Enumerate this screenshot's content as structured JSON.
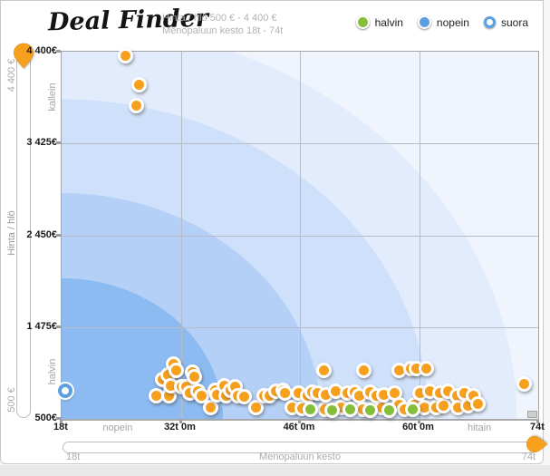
{
  "header": {
    "logo": "Deal Finder",
    "summary_line1": "Hinta / hlö 500 € - 4 400 €",
    "summary_line2": "Menopaluun kesto 18t - 74t",
    "legend": [
      {
        "label": "halvin",
        "color": "#85bf3a"
      },
      {
        "label": "nopein",
        "color": "#5b9fe0"
      },
      {
        "label": "suora",
        "color": "#5b9fe0"
      }
    ]
  },
  "price_slider": {
    "max_label": "4 400 €",
    "axis_label": "Hinta / hlö",
    "min_label": "500 €"
  },
  "duration_slider": {
    "min_label": "18t",
    "axis_label": "Menopaluun kesto",
    "max_label": "74t"
  },
  "chart_data": {
    "type": "scatter",
    "xlabel": "Menopaluun kesto",
    "ylabel": "Hinta / hlö",
    "xlim": [
      18,
      74
    ],
    "ylim": [
      500,
      4400
    ],
    "grid": true,
    "x_ticks": [
      {
        "label": "18t",
        "h": 18
      },
      {
        "label": "32t 0m",
        "h": 32
      },
      {
        "label": "46t 0m",
        "h": 46
      },
      {
        "label": "60t 0m",
        "h": 60
      },
      {
        "label": "74t",
        "h": 74
      }
    ],
    "x_side_labels": [
      {
        "label": "nopein",
        "h": 24.7
      },
      {
        "label": "hitain",
        "h": 67.2
      }
    ],
    "y_ticks": [
      {
        "label": "4 400€",
        "eur": 4400
      },
      {
        "label": "3 425€",
        "eur": 3425
      },
      {
        "label": "2 450€",
        "eur": 2450
      },
      {
        "label": "1 475€",
        "eur": 1475
      },
      {
        "label": "500€",
        "eur": 500
      }
    ],
    "y_side_labels": [
      {
        "label": "kallein",
        "eur": 3900
      },
      {
        "label": "halvin",
        "eur": 980
      }
    ],
    "bands": {
      "center": "bottom-left",
      "colors": [
        "#8cbbf1",
        "#b5d0f7",
        "#cfe0fa",
        "#e2ecfc",
        "#eff4fd"
      ],
      "stops_pct": [
        33,
        53,
        75,
        93
      ]
    },
    "grid_color": "#b6bcc4",
    "point_colors": {
      "deal": "#F6A01E",
      "halvin": "#85bf3a",
      "suora_ring": "#5b9fe0"
    },
    "points": [
      {
        "h": 18.6,
        "eur": 780,
        "kind": "suora"
      },
      {
        "h": 25.5,
        "eur": 4360
      },
      {
        "h": 27.1,
        "eur": 4050
      },
      {
        "h": 26.8,
        "eur": 3830
      },
      {
        "h": 29.1,
        "eur": 750
      },
      {
        "h": 29.9,
        "eur": 915
      },
      {
        "h": 30.5,
        "eur": 965
      },
      {
        "h": 30.6,
        "eur": 750
      },
      {
        "h": 30.8,
        "eur": 850
      },
      {
        "h": 31.2,
        "eur": 1080
      },
      {
        "h": 31.5,
        "eur": 1015
      },
      {
        "h": 32.1,
        "eur": 840
      },
      {
        "h": 32.6,
        "eur": 845
      },
      {
        "h": 33.1,
        "eur": 770
      },
      {
        "h": 33.4,
        "eur": 995
      },
      {
        "h": 33.6,
        "eur": 945
      },
      {
        "h": 34.0,
        "eur": 790
      },
      {
        "h": 34.5,
        "eur": 750
      },
      {
        "h": 35.5,
        "eur": 625
      },
      {
        "h": 36.0,
        "eur": 800
      },
      {
        "h": 36.3,
        "eur": 752
      },
      {
        "h": 37.1,
        "eur": 850
      },
      {
        "h": 37.3,
        "eur": 745
      },
      {
        "h": 37.9,
        "eur": 800
      },
      {
        "h": 38.4,
        "eur": 840
      },
      {
        "h": 38.7,
        "eur": 745
      },
      {
        "h": 39.5,
        "eur": 735
      },
      {
        "h": 40.8,
        "eur": 625
      },
      {
        "h": 41.8,
        "eur": 750
      },
      {
        "h": 42.4,
        "eur": 745
      },
      {
        "h": 43.2,
        "eur": 790
      },
      {
        "h": 44.0,
        "eur": 800
      },
      {
        "h": 44.2,
        "eur": 770
      },
      {
        "h": 45.1,
        "eur": 625
      },
      {
        "h": 45.8,
        "eur": 770
      },
      {
        "h": 46.3,
        "eur": 615
      },
      {
        "h": 46.9,
        "eur": 745
      },
      {
        "h": 47.4,
        "eur": 780
      },
      {
        "h": 48.1,
        "eur": 770
      },
      {
        "h": 48.8,
        "eur": 1015
      },
      {
        "h": 48.9,
        "eur": 605
      },
      {
        "h": 49.0,
        "eur": 760
      },
      {
        "h": 50.2,
        "eur": 790
      },
      {
        "h": 50.8,
        "eur": 625
      },
      {
        "h": 51.6,
        "eur": 770
      },
      {
        "h": 52.4,
        "eur": 780
      },
      {
        "h": 53.0,
        "eur": 750
      },
      {
        "h": 53.4,
        "eur": 605
      },
      {
        "h": 53.5,
        "eur": 1015
      },
      {
        "h": 54.3,
        "eur": 780
      },
      {
        "h": 55.0,
        "eur": 750
      },
      {
        "h": 55.6,
        "eur": 625
      },
      {
        "h": 55.8,
        "eur": 760
      },
      {
        "h": 57.1,
        "eur": 770
      },
      {
        "h": 57.7,
        "eur": 1015
      },
      {
        "h": 57.7,
        "eur": 645
      },
      {
        "h": 58.3,
        "eur": 600
      },
      {
        "h": 59.0,
        "eur": 1035
      },
      {
        "h": 59.5,
        "eur": 645
      },
      {
        "h": 59.7,
        "eur": 1035
      },
      {
        "h": 60.1,
        "eur": 770
      },
      {
        "h": 60.6,
        "eur": 625
      },
      {
        "h": 60.8,
        "eur": 1035
      },
      {
        "h": 61.3,
        "eur": 790
      },
      {
        "h": 62.0,
        "eur": 625
      },
      {
        "h": 62.4,
        "eur": 770
      },
      {
        "h": 62.9,
        "eur": 635
      },
      {
        "h": 63.4,
        "eur": 790
      },
      {
        "h": 64.5,
        "eur": 750
      },
      {
        "h": 64.6,
        "eur": 625
      },
      {
        "h": 65.3,
        "eur": 770
      },
      {
        "h": 65.8,
        "eur": 635
      },
      {
        "h": 66.4,
        "eur": 745
      },
      {
        "h": 66.9,
        "eur": 655
      },
      {
        "h": 47.2,
        "eur": 605,
        "kind": "halvin"
      },
      {
        "h": 49.8,
        "eur": 595,
        "kind": "halvin"
      },
      {
        "h": 51.9,
        "eur": 605,
        "kind": "halvin"
      },
      {
        "h": 54.3,
        "eur": 595,
        "kind": "halvin"
      },
      {
        "h": 56.5,
        "eur": 595,
        "kind": "halvin"
      },
      {
        "h": 59.3,
        "eur": 605,
        "kind": "halvin"
      },
      {
        "h": 72.3,
        "eur": 870
      }
    ]
  }
}
